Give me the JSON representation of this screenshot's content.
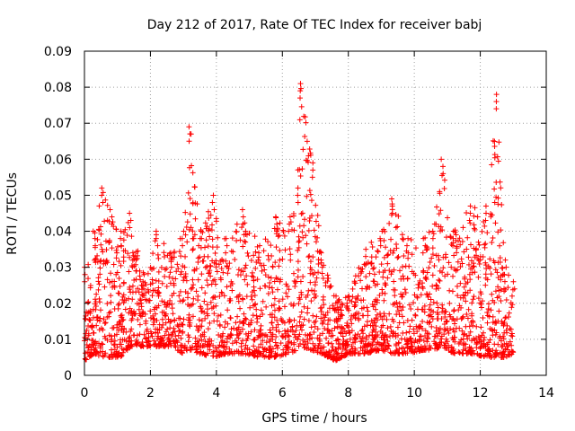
{
  "chart_data": {
    "type": "scatter",
    "title": "Day 212 of 2017, Rate Of TEC Index for receiver babj",
    "xlabel": "GPS time / hours",
    "ylabel": "ROTI / TECUs",
    "xlim": [
      0,
      14
    ],
    "ylim": [
      0,
      0.09
    ],
    "xticks": [
      0,
      2,
      4,
      6,
      8,
      10,
      12,
      14
    ],
    "yticks": [
      0,
      0.01,
      0.02,
      0.03,
      0.04,
      0.05,
      0.06,
      0.07,
      0.08,
      0.09
    ],
    "xtick_labels": [
      "0",
      "2",
      "4",
      "6",
      "8",
      "10",
      "12",
      "14"
    ],
    "ytick_labels": [
      "0",
      "0.01",
      "0.02",
      "0.03",
      "0.04",
      "0.05",
      "0.06",
      "0.07",
      "0.08",
      "0.09"
    ],
    "grid": true,
    "marker": "+",
    "color": "#ff0000",
    "series": [
      {
        "name": "ROTI",
        "envelope": [
          {
            "x": 0.0,
            "max": 0.03,
            "min": 0.004
          },
          {
            "x": 0.3,
            "max": 0.04,
            "min": 0.006
          },
          {
            "x": 0.55,
            "max": 0.052,
            "min": 0.005
          },
          {
            "x": 0.8,
            "max": 0.046,
            "min": 0.005
          },
          {
            "x": 1.1,
            "max": 0.04,
            "min": 0.005
          },
          {
            "x": 1.4,
            "max": 0.045,
            "min": 0.008
          },
          {
            "x": 1.8,
            "max": 0.028,
            "min": 0.008
          },
          {
            "x": 2.2,
            "max": 0.04,
            "min": 0.008
          },
          {
            "x": 2.6,
            "max": 0.034,
            "min": 0.008
          },
          {
            "x": 3.0,
            "max": 0.04,
            "min": 0.006
          },
          {
            "x": 3.2,
            "max": 0.069,
            "min": 0.007
          },
          {
            "x": 3.5,
            "max": 0.04,
            "min": 0.006
          },
          {
            "x": 3.9,
            "max": 0.05,
            "min": 0.005
          },
          {
            "x": 4.3,
            "max": 0.038,
            "min": 0.006
          },
          {
            "x": 4.8,
            "max": 0.046,
            "min": 0.006
          },
          {
            "x": 5.3,
            "max": 0.036,
            "min": 0.005
          },
          {
            "x": 5.8,
            "max": 0.044,
            "min": 0.005
          },
          {
            "x": 6.2,
            "max": 0.044,
            "min": 0.006
          },
          {
            "x": 6.45,
            "max": 0.052,
            "min": 0.007
          },
          {
            "x": 6.55,
            "max": 0.081,
            "min": 0.008
          },
          {
            "x": 6.9,
            "max": 0.059,
            "min": 0.007
          },
          {
            "x": 7.2,
            "max": 0.034,
            "min": 0.006
          },
          {
            "x": 7.6,
            "max": 0.022,
            "min": 0.004
          },
          {
            "x": 8.0,
            "max": 0.022,
            "min": 0.006
          },
          {
            "x": 8.5,
            "max": 0.035,
            "min": 0.006
          },
          {
            "x": 9.0,
            "max": 0.04,
            "min": 0.007
          },
          {
            "x": 9.3,
            "max": 0.049,
            "min": 0.006
          },
          {
            "x": 9.8,
            "max": 0.038,
            "min": 0.006
          },
          {
            "x": 10.3,
            "max": 0.038,
            "min": 0.007
          },
          {
            "x": 10.6,
            "max": 0.042,
            "min": 0.007
          },
          {
            "x": 10.85,
            "max": 0.06,
            "min": 0.008
          },
          {
            "x": 11.2,
            "max": 0.04,
            "min": 0.006
          },
          {
            "x": 11.7,
            "max": 0.047,
            "min": 0.006
          },
          {
            "x": 12.2,
            "max": 0.047,
            "min": 0.005
          },
          {
            "x": 12.5,
            "max": 0.078,
            "min": 0.005
          },
          {
            "x": 12.75,
            "max": 0.032,
            "min": 0.005
          },
          {
            "x": 13.0,
            "max": 0.026,
            "min": 0.006
          }
        ]
      }
    ]
  }
}
